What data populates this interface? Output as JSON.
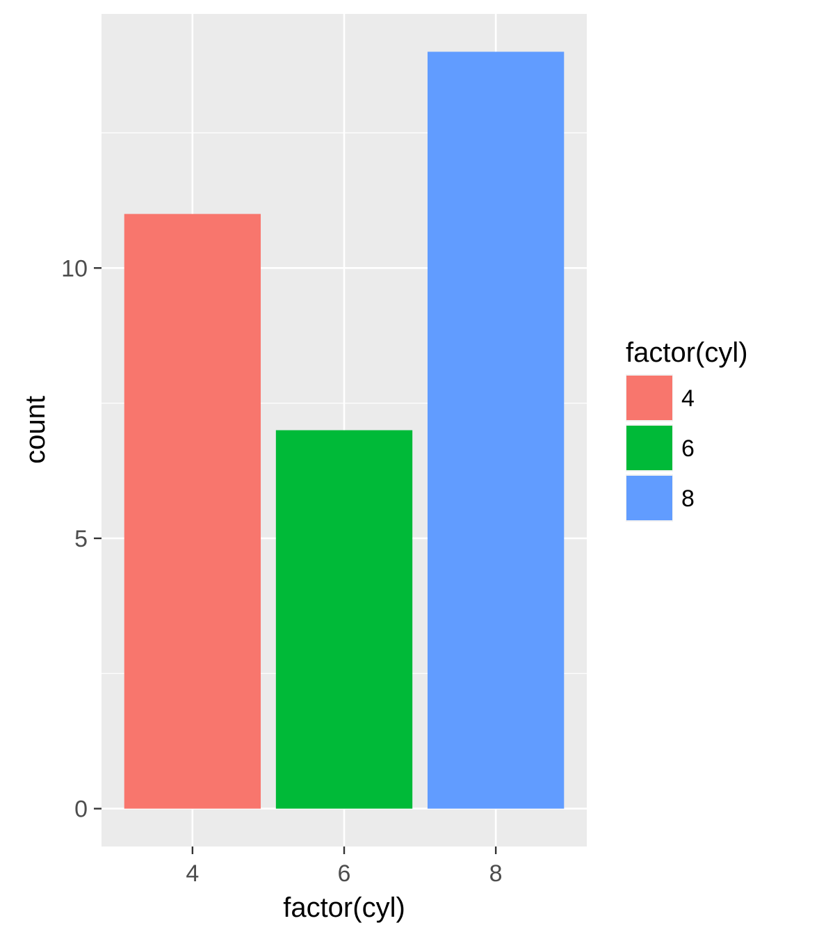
{
  "chart_data": {
    "type": "bar",
    "title": "",
    "xlabel": "factor(cyl)",
    "ylabel": "count",
    "categories": [
      "4",
      "6",
      "8"
    ],
    "values": [
      11,
      7,
      14
    ],
    "colors": [
      "#F8766D",
      "#00BA38",
      "#619CFF"
    ],
    "ylim": [
      -0.7,
      14.7
    ],
    "yticks": [
      0,
      5,
      10
    ],
    "grid": true,
    "background": "#EBEBEB",
    "legend": {
      "title": "factor(cyl)",
      "position": "right",
      "entries": [
        {
          "label": "4",
          "color": "#F8766D"
        },
        {
          "label": "6",
          "color": "#00BA38"
        },
        {
          "label": "8",
          "color": "#619CFF"
        }
      ]
    }
  }
}
